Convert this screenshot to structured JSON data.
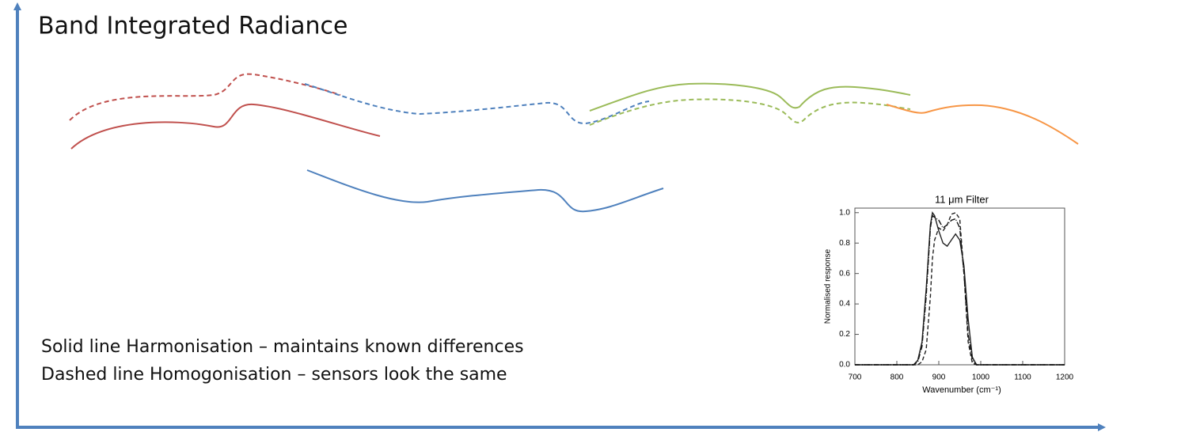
{
  "title": "Band Integrated Radiance",
  "notes": [
    "Solid line Harmonisation – maintains known differences",
    "Dashed line Homogonisation – sensors look the same"
  ],
  "chart_data": {
    "type": "line",
    "title": "11 μm Filter",
    "x_label": "Wavenumber (cm⁻¹)",
    "y_label": "Normalised response",
    "x": [
      700,
      840,
      850,
      860,
      870,
      880,
      885,
      890,
      900,
      910,
      920,
      930,
      940,
      950,
      960,
      970,
      980,
      990,
      1200
    ],
    "series": [
      {
        "color": "#222222",
        "dash": "solid",
        "values": [
          0,
          0,
          0.03,
          0.15,
          0.5,
          0.92,
          1.0,
          0.98,
          0.88,
          0.8,
          0.78,
          0.82,
          0.86,
          0.82,
          0.65,
          0.3,
          0.05,
          0,
          0
        ]
      },
      {
        "color": "#222222",
        "dash": "dashed",
        "values": [
          0,
          0,
          0,
          0.02,
          0.1,
          0.45,
          0.7,
          0.82,
          0.9,
          0.88,
          0.92,
          0.99,
          1.0,
          0.96,
          0.6,
          0.15,
          0.01,
          0,
          0
        ]
      },
      {
        "color": "#111111",
        "dash": "dashdot",
        "values": [
          0,
          0,
          0.02,
          0.12,
          0.45,
          0.9,
          0.98,
          0.97,
          0.95,
          0.9,
          0.92,
          0.95,
          0.96,
          0.9,
          0.6,
          0.2,
          0.03,
          0,
          0
        ]
      }
    ],
    "xlim": [
      700,
      1200
    ],
    "xticks": [
      700,
      800,
      900,
      1000,
      1100,
      1200
    ],
    "ylim": [
      0,
      1.03
    ],
    "yticks": [
      {
        "value": 0,
        "label": "0.0"
      },
      0.2,
      0.4,
      0.6,
      0.8,
      {
        "value": 1,
        "label": "1.0"
      }
    ]
  }
}
